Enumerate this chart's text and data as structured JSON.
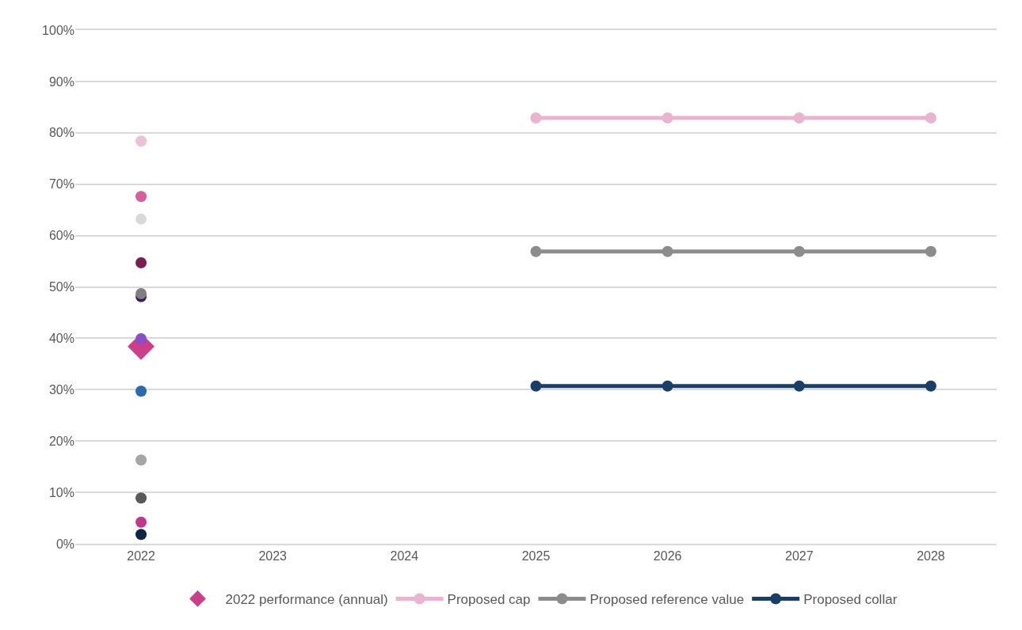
{
  "chart_data": {
    "type": "line",
    "categories": [
      "2022",
      "2023",
      "2024",
      "2025",
      "2026",
      "2027",
      "2028"
    ],
    "ylim": [
      0,
      100
    ],
    "yticks": [
      {
        "value": 0,
        "label": "0%"
      },
      {
        "value": 10,
        "label": "10%"
      },
      {
        "value": 20,
        "label": "20%"
      },
      {
        "value": 30,
        "label": "30%"
      },
      {
        "value": 40,
        "label": "40%"
      },
      {
        "value": 50,
        "label": "50%"
      },
      {
        "value": 60,
        "label": "60%"
      },
      {
        "value": 70,
        "label": "70%"
      },
      {
        "value": 80,
        "label": "80%"
      },
      {
        "value": 90,
        "label": "90%"
      },
      {
        "value": 100,
        "label": "100%"
      }
    ],
    "grid": "y",
    "legend": "bottom",
    "marker": "circle",
    "line_style": "solid",
    "series": [
      {
        "name": "2022 performance (annual)",
        "type": "scatter",
        "marker": "diamond",
        "color": "#cc3d8a",
        "values": [
          38.4,
          null,
          null,
          null,
          null,
          null,
          null
        ]
      },
      {
        "type": "scatter",
        "color": "#efbfd7",
        "values": [
          78.4,
          null,
          null,
          null,
          null,
          null,
          null
        ]
      },
      {
        "type": "scatter",
        "color": "#d6609a",
        "values": [
          67.6,
          null,
          null,
          null,
          null,
          null,
          null
        ]
      },
      {
        "type": "scatter",
        "color": "#d9d9d9",
        "values": [
          63.2,
          null,
          null,
          null,
          null,
          null,
          null
        ]
      },
      {
        "type": "scatter",
        "color": "#7a1f4f",
        "values": [
          54.7,
          null,
          null,
          null,
          null,
          null,
          null
        ]
      },
      {
        "type": "scatter",
        "color": "#3d1a5e",
        "values": [
          48.1,
          null,
          null,
          null,
          null,
          null,
          null
        ]
      },
      {
        "type": "scatter",
        "color": "#808080",
        "values": [
          48.7,
          null,
          null,
          null,
          null,
          null,
          null
        ]
      },
      {
        "type": "scatter",
        "color": "#8b4ec8",
        "values": [
          39.9,
          null,
          null,
          null,
          null,
          null,
          null
        ]
      },
      {
        "type": "scatter",
        "color": "#2a6aae",
        "values": [
          29.7,
          null,
          null,
          null,
          null,
          null,
          null
        ]
      },
      {
        "type": "scatter",
        "color": "#a6a6a6",
        "values": [
          16.3,
          null,
          null,
          null,
          null,
          null,
          null
        ]
      },
      {
        "type": "scatter",
        "color": "#595959",
        "values": [
          8.9,
          null,
          null,
          null,
          null,
          null,
          null
        ]
      },
      {
        "type": "scatter",
        "color": "#c5358a",
        "values": [
          4.2,
          null,
          null,
          null,
          null,
          null,
          null
        ]
      },
      {
        "type": "scatter",
        "color": "#0d2644",
        "values": [
          1.8,
          null,
          null,
          null,
          null,
          null,
          null
        ]
      },
      {
        "name": "Proposed cap",
        "color": "#e8b4d0",
        "values": [
          null,
          null,
          null,
          82.9,
          82.9,
          82.9,
          82.9
        ]
      },
      {
        "name": "Proposed reference value",
        "color": "#8c8c8c",
        "values": [
          null,
          null,
          null,
          56.9,
          56.9,
          56.9,
          56.9
        ]
      },
      {
        "name": "Proposed collar",
        "color": "#1a3f66",
        "values": [
          null,
          null,
          null,
          30.7,
          30.7,
          30.7,
          30.7
        ]
      }
    ]
  }
}
